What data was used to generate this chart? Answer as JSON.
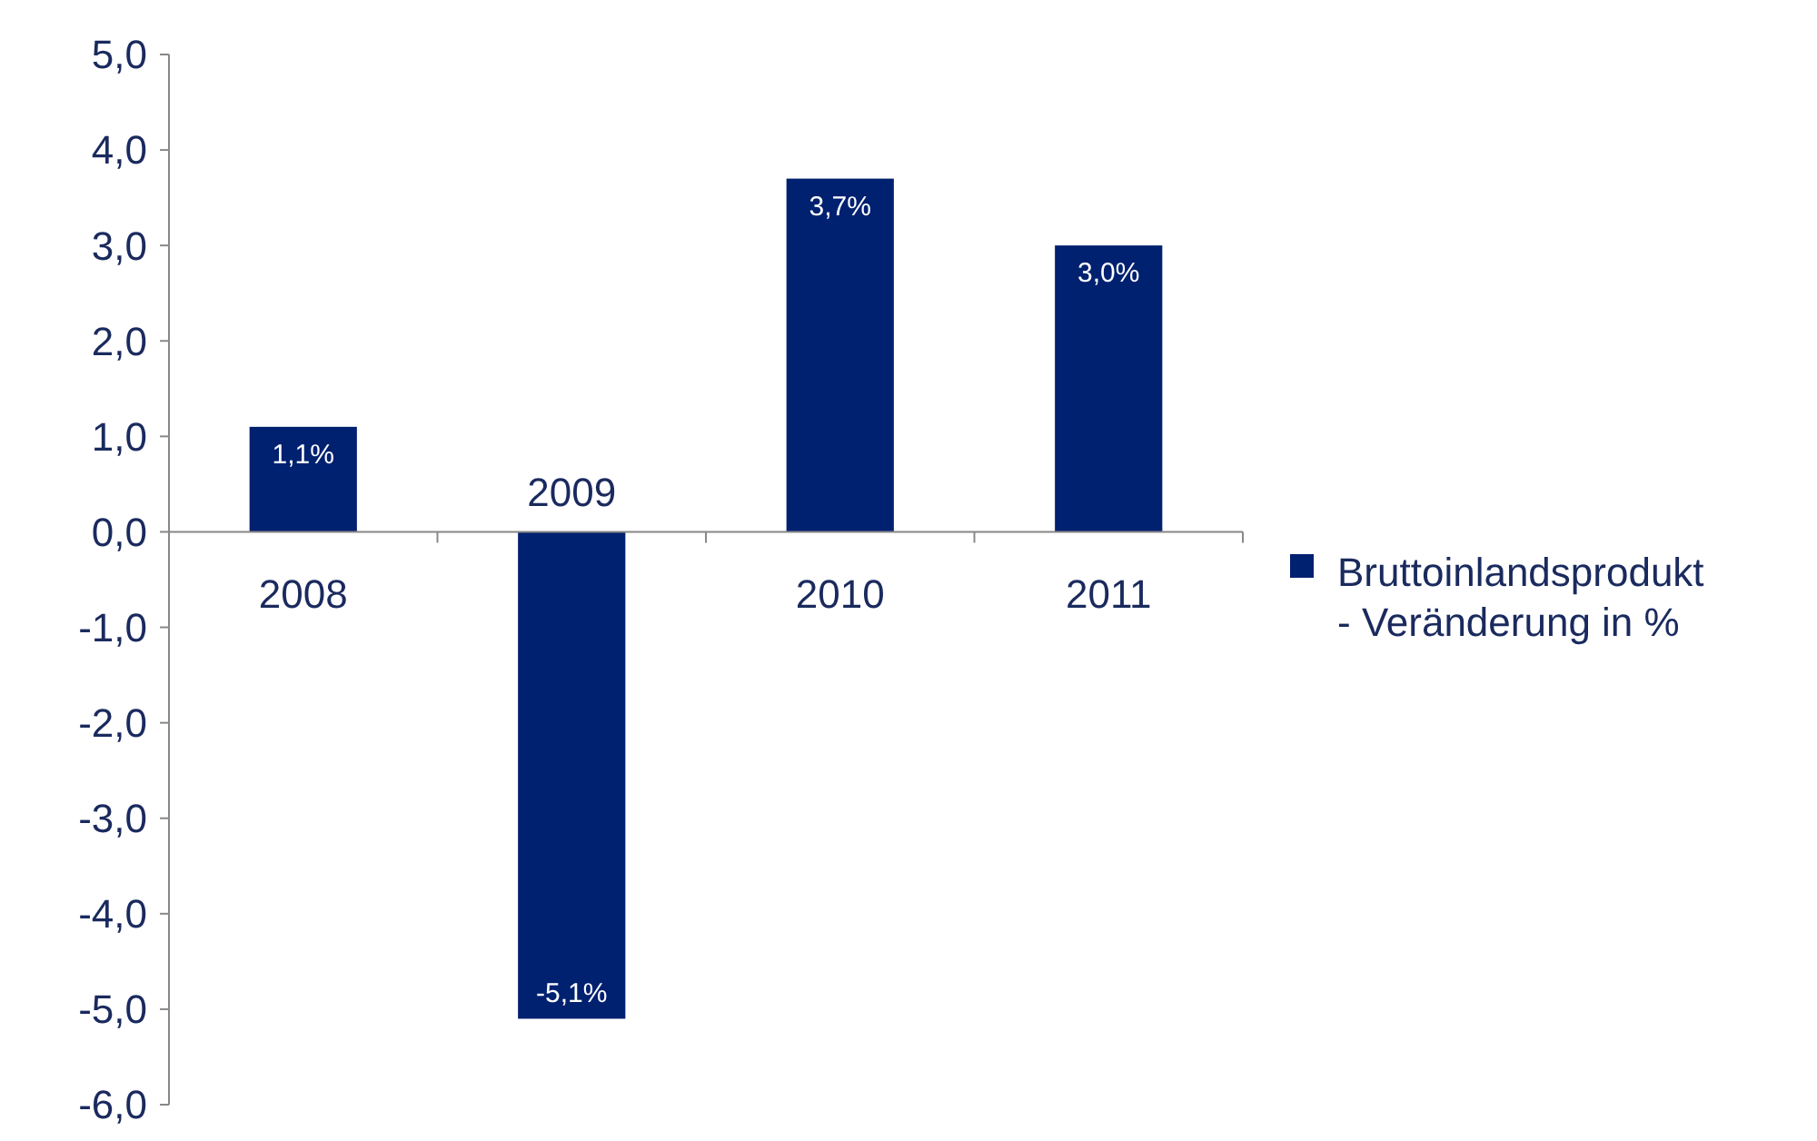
{
  "chart_data": {
    "type": "bar",
    "categories": [
      "2008",
      "2009",
      "2010",
      "2011"
    ],
    "series": [
      {
        "name": "Bruttoinlandsprodukt - Veränderung in %",
        "color": "#002070",
        "values": [
          1.1,
          -5.1,
          3.7,
          3.0
        ],
        "value_labels": [
          "1,1%",
          "-5,1%",
          "3,7%",
          "3,0%"
        ]
      }
    ],
    "ylim": [
      -6,
      5
    ],
    "yticks": [
      {
        "value": 5,
        "label": "5,0"
      },
      {
        "value": 4,
        "label": "4,0"
      },
      {
        "value": 3,
        "label": "3,0"
      },
      {
        "value": 2,
        "label": "2,0"
      },
      {
        "value": 1,
        "label": "1,0"
      },
      {
        "value": 0,
        "label": "0,0"
      },
      {
        "value": -1,
        "label": "-1,0"
      },
      {
        "value": -2,
        "label": "-2,0"
      },
      {
        "value": -3,
        "label": "-3,0"
      },
      {
        "value": -4,
        "label": "-4,0"
      },
      {
        "value": -5,
        "label": "-5,0"
      },
      {
        "value": -6,
        "label": "-6,0"
      }
    ],
    "grid": false,
    "legend": "right"
  }
}
